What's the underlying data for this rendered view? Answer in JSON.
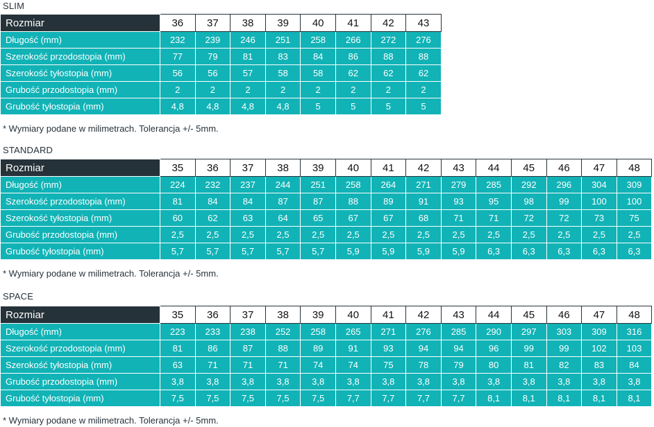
{
  "note": "* Wymiary podane w milimetrach. Tolerancja +/- 5mm.",
  "tables": [
    {
      "title": "SLIM",
      "header_label": "Rozmiar",
      "sizes": [
        "36",
        "37",
        "38",
        "39",
        "40",
        "41",
        "42",
        "43"
      ],
      "rows": [
        {
          "label": "Długość (mm)",
          "values": [
            "232",
            "239",
            "246",
            "251",
            "258",
            "266",
            "272",
            "276"
          ]
        },
        {
          "label": "Szerokość przodostopia (mm)",
          "values": [
            "77",
            "79",
            "81",
            "83",
            "84",
            "86",
            "88",
            "88"
          ]
        },
        {
          "label": "Szerokość tyłostopia (mm)",
          "values": [
            "56",
            "56",
            "57",
            "58",
            "58",
            "62",
            "62",
            "62"
          ]
        },
        {
          "label": "Grubość przodostopia (mm)",
          "values": [
            "2",
            "2",
            "2",
            "2",
            "2",
            "2",
            "2",
            "2"
          ]
        },
        {
          "label": "Grubość tyłostopia (mm)",
          "values": [
            "4,8",
            "4,8",
            "4,8",
            "4,8",
            "5",
            "5",
            "5",
            "5"
          ]
        }
      ]
    },
    {
      "title": "STANDARD",
      "header_label": "Rozmiar",
      "sizes": [
        "35",
        "36",
        "37",
        "38",
        "39",
        "40",
        "41",
        "42",
        "43",
        "44",
        "45",
        "46",
        "47",
        "48"
      ],
      "rows": [
        {
          "label": "Długość (mm)",
          "values": [
            "224",
            "232",
            "237",
            "244",
            "251",
            "258",
            "264",
            "271",
            "279",
            "285",
            "292",
            "296",
            "304",
            "309"
          ]
        },
        {
          "label": "Szerokość przodostopia (mm)",
          "values": [
            "81",
            "84",
            "84",
            "87",
            "87",
            "88",
            "89",
            "91",
            "93",
            "95",
            "98",
            "99",
            "100",
            "100"
          ]
        },
        {
          "label": "Szerokość tyłostopia (mm)",
          "values": [
            "60",
            "62",
            "63",
            "64",
            "65",
            "67",
            "67",
            "68",
            "71",
            "71",
            "72",
            "72",
            "73",
            "75"
          ]
        },
        {
          "label": "Grubość przodostopia (mm)",
          "values": [
            "2,5",
            "2,5",
            "2,5",
            "2,5",
            "2,5",
            "2,5",
            "2,5",
            "2,5",
            "2,5",
            "2,5",
            "2,5",
            "2,5",
            "2,5",
            "2,5"
          ]
        },
        {
          "label": "Grubość tyłostopia (mm)",
          "values": [
            "5,7",
            "5,7",
            "5,7",
            "5,7",
            "5,7",
            "5,9",
            "5,9",
            "5,9",
            "5,9",
            "6,3",
            "6,3",
            "6,3",
            "6,3",
            "6,3"
          ]
        }
      ]
    },
    {
      "title": "SPACE",
      "header_label": "Rozmiar",
      "sizes": [
        "35",
        "36",
        "37",
        "38",
        "39",
        "40",
        "41",
        "42",
        "43",
        "44",
        "45",
        "46",
        "47",
        "48"
      ],
      "rows": [
        {
          "label": "Długość (mm)",
          "values": [
            "223",
            "233",
            "238",
            "252",
            "258",
            "265",
            "271",
            "276",
            "285",
            "290",
            "297",
            "303",
            "309",
            "316"
          ]
        },
        {
          "label": "Szerokość przodostopia (mm)",
          "values": [
            "81",
            "86",
            "87",
            "88",
            "89",
            "91",
            "93",
            "94",
            "94",
            "96",
            "99",
            "99",
            "102",
            "103"
          ]
        },
        {
          "label": "Szerokość tyłostopia (mm)",
          "values": [
            "63",
            "71",
            "71",
            "71",
            "74",
            "74",
            "75",
            "78",
            "79",
            "80",
            "81",
            "82",
            "83",
            "84"
          ]
        },
        {
          "label": "Grubość przodostopia (mm)",
          "values": [
            "3,8",
            "3,8",
            "3,8",
            "3,8",
            "3,8",
            "3,8",
            "3,8",
            "3,8",
            "3,8",
            "3,8",
            "3,8",
            "3,8",
            "3,8",
            "3,8"
          ]
        },
        {
          "label": "Grubość tyłostopia (mm)",
          "values": [
            "7,5",
            "7,5",
            "7,5",
            "7,5",
            "7,5",
            "7,7",
            "7,7",
            "7,7",
            "7,7",
            "8,1",
            "8,1",
            "8,1",
            "8,1",
            "8,1"
          ]
        }
      ]
    }
  ]
}
